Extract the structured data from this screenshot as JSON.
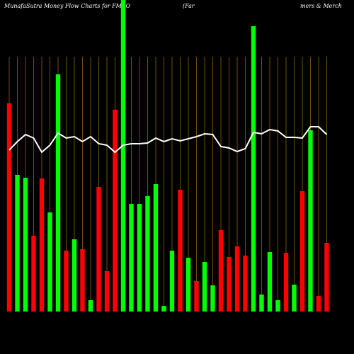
{
  "chart_data": {
    "type": "bar",
    "title": "MunafaSutra  Money Flow  Charts for FMAO",
    "title_right_parts": [
      "(Far",
      "mers & Merch"
    ],
    "ylim": [
      0,
      440
    ],
    "series": [
      {
        "name": "Money Flow",
        "colors": [
          "#ff0000",
          "#00ff00",
          "#00ff00",
          "#ff0000",
          "#ff0000",
          "#00ff00",
          "#00ff00",
          "#ff0000",
          "#00ff00",
          "#ff0000",
          "#00ff00",
          "#ff0000",
          "#ff0000",
          "#ff0000",
          "#00ff00",
          "#00ff00",
          "#00ff00",
          "#00ff00",
          "#00ff00",
          "#00ff00",
          "#00ff00",
          "#ff0000",
          "#00ff00",
          "#ff0000",
          "#00ff00",
          "#00ff00",
          "#ff0000",
          "#ff0000",
          "#ff0000",
          "#ff0000",
          "#00ff00",
          "#00ff00",
          "#00ff00",
          "#00ff00",
          "#ff0000",
          "#00ff00",
          "#ff0000",
          "#00ff00",
          "#ff0000",
          "#ff0000"
        ],
        "values": [
          294,
          193,
          189,
          107,
          188,
          140,
          335,
          86,
          102,
          88,
          16,
          176,
          57,
          285,
          440,
          152,
          152,
          163,
          180,
          8,
          86,
          172,
          76,
          43,
          70,
          37,
          115,
          77,
          92,
          79,
          403,
          24,
          84,
          16,
          83,
          38,
          170,
          256,
          22,
          97
        ]
      },
      {
        "name": "Price",
        "color": "#ffffff",
        "values": [
          228,
          240,
          250,
          245,
          225,
          235,
          252,
          245,
          247,
          240,
          247,
          237,
          235,
          225,
          235,
          237,
          237,
          238,
          245,
          240,
          244,
          241,
          244,
          247,
          251,
          250,
          233,
          231,
          226,
          230,
          253,
          251,
          257,
          255,
          246,
          246,
          245,
          261,
          261,
          250
        ]
      }
    ]
  }
}
